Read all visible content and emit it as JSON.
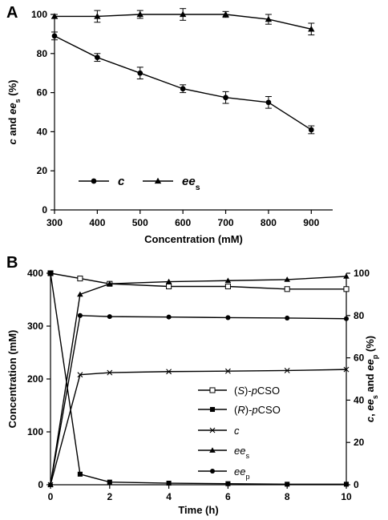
{
  "chart_data": [
    {
      "panel": "A",
      "type": "line",
      "x": [
        300,
        400,
        500,
        600,
        700,
        800,
        900
      ],
      "xlabel": "Concentration (mM)",
      "ylabel_parts": [
        "c",
        " and ",
        "ee",
        "s",
        " (%)"
      ],
      "xlim": [
        300,
        950
      ],
      "ylim": [
        0,
        100
      ],
      "xticks": [
        300,
        400,
        500,
        600,
        700,
        800,
        900
      ],
      "yticks": [
        0,
        20,
        40,
        60,
        80,
        100
      ],
      "legend_position": "lower-left",
      "series": [
        {
          "name": "c",
          "marker": "circle",
          "values": [
            89,
            78,
            70,
            62,
            57.5,
            55,
            41
          ],
          "errors": [
            2,
            2,
            3,
            2,
            3,
            3,
            2
          ]
        },
        {
          "name_parts": [
            "ee",
            "s"
          ],
          "marker": "triangle",
          "values": [
            99,
            99,
            100,
            100,
            100,
            97.5,
            92.5
          ],
          "errors": [
            1,
            3,
            2,
            3,
            1.5,
            2.5,
            3
          ]
        }
      ],
      "grid": false
    },
    {
      "panel": "B",
      "type": "line",
      "x": [
        0,
        1,
        2,
        4,
        6,
        8,
        10
      ],
      "xlabel": "Time (h)",
      "ylabel_left": "Concentration (mM)",
      "ylabel_right_parts": [
        "c",
        ", ",
        "ee",
        "s",
        " and ",
        "ee",
        "p",
        " (%)"
      ],
      "xlim": [
        0,
        10
      ],
      "ylim_left": [
        0,
        400
      ],
      "ylim_right": [
        0,
        100
      ],
      "xticks": [
        0,
        2,
        4,
        6,
        8,
        10
      ],
      "yticks_left": [
        0,
        100,
        200,
        300,
        400
      ],
      "yticks_right": [
        0,
        20,
        40,
        60,
        80,
        100
      ],
      "legend_position": "center-right",
      "series": [
        {
          "name_parts": [
            "(",
            "S",
            ")-",
            "p",
            "CSO"
          ],
          "axis": "left",
          "marker": "open-square",
          "values": [
            400,
            390,
            380,
            375,
            375,
            370,
            370
          ]
        },
        {
          "name_parts": [
            "(",
            "R",
            ")-",
            "p",
            "CSO"
          ],
          "axis": "left",
          "marker": "filled-square",
          "values": [
            400,
            20,
            5,
            3,
            2,
            1,
            1
          ]
        },
        {
          "name": "c",
          "axis": "right",
          "marker": "x",
          "values": [
            0,
            52,
            53,
            53.5,
            53.7,
            54,
            54.5
          ]
        },
        {
          "name_parts": [
            "ee",
            "s"
          ],
          "axis": "right",
          "marker": "triangle",
          "values": [
            0,
            90,
            95,
            96,
            96.5,
            97,
            98.5
          ]
        },
        {
          "name_parts": [
            "ee",
            "p"
          ],
          "axis": "right",
          "marker": "circle",
          "values": [
            0,
            80,
            79.5,
            79.3,
            79,
            78.8,
            78.5
          ]
        }
      ],
      "grid": false
    }
  ]
}
